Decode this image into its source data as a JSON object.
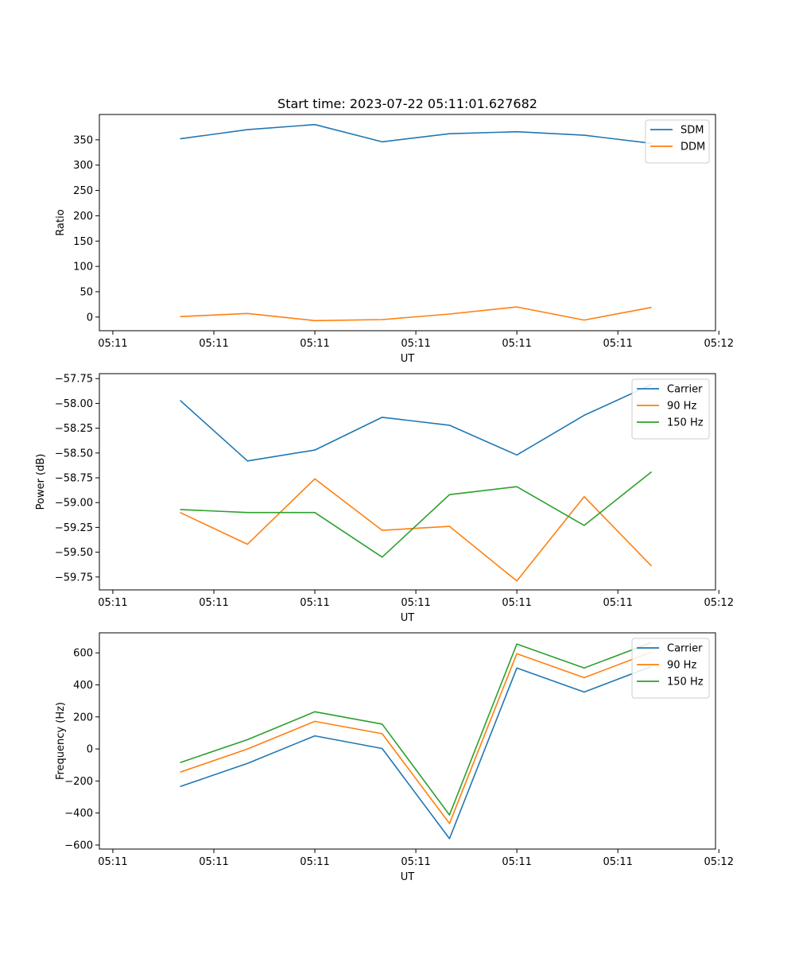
{
  "chart_data": [
    {
      "type": "line",
      "title": "Start time: 2023-07-22 05:11:01.627682",
      "xlabel": "UT",
      "ylabel": "Ratio",
      "xticklabels": [
        "05:11",
        "05:11",
        "05:11",
        "05:11",
        "05:11",
        "05:11",
        "05:12"
      ],
      "x": [
        1,
        2,
        3,
        4,
        5,
        6,
        7,
        8
      ],
      "xlim": [
        -0.2,
        8.95
      ],
      "xticks": [
        0,
        1.5,
        3,
        4.5,
        6,
        7.5,
        9
      ],
      "ylim": [
        -27,
        400
      ],
      "yticks": [
        0,
        50,
        100,
        150,
        200,
        250,
        300,
        350
      ],
      "yticklabels": [
        "0",
        "50",
        "100",
        "150",
        "200",
        "250",
        "300",
        "350"
      ],
      "legend_position": "top-right",
      "series": [
        {
          "name": "SDM",
          "color": "#1f77b4",
          "values": [
            352,
            370,
            380,
            346,
            362,
            366,
            359,
            343
          ]
        },
        {
          "name": "DDM",
          "color": "#ff7f0e",
          "values": [
            1,
            7,
            -7,
            -5,
            6,
            20,
            -6,
            19
          ]
        }
      ]
    },
    {
      "type": "line",
      "title": "",
      "xlabel": "UT",
      "ylabel": "Power (dB)",
      "xticklabels": [
        "05:11",
        "05:11",
        "05:11",
        "05:11",
        "05:11",
        "05:11",
        "05:12"
      ],
      "x": [
        1,
        2,
        3,
        4,
        5,
        6,
        7,
        8
      ],
      "xlim": [
        -0.2,
        8.95
      ],
      "xticks": [
        0,
        1.5,
        3,
        4.5,
        6,
        7.5,
        9
      ],
      "ylim": [
        -59.88,
        -57.7
      ],
      "yticks": [
        -57.75,
        -58.0,
        -58.25,
        -58.5,
        -58.75,
        -59.0,
        -59.25,
        -59.5,
        -59.75
      ],
      "yticklabels": [
        "−57.75",
        "−58.00",
        "−58.25",
        "−58.50",
        "−58.75",
        "−59.00",
        "−59.25",
        "−59.50",
        "−59.75"
      ],
      "legend_position": "top-right",
      "series": [
        {
          "name": "Carrier",
          "color": "#1f77b4",
          "values": [
            -57.97,
            -58.58,
            -58.47,
            -58.14,
            -58.22,
            -58.52,
            -58.12,
            -57.81
          ]
        },
        {
          "name": "90 Hz",
          "color": "#ff7f0e",
          "values": [
            -59.1,
            -59.42,
            -58.76,
            -59.28,
            -59.24,
            -59.79,
            -58.94,
            -59.64
          ]
        },
        {
          "name": "150 Hz",
          "color": "#2ca02c",
          "values": [
            -59.07,
            -59.1,
            -59.1,
            -59.55,
            -58.92,
            -58.84,
            -59.23,
            -58.69
          ]
        }
      ]
    },
    {
      "type": "line",
      "title": "",
      "xlabel": "UT",
      "ylabel": "Frequency (Hz)",
      "xticklabels": [
        "05:11",
        "05:11",
        "05:11",
        "05:11",
        "05:11",
        "05:11",
        "05:12"
      ],
      "x": [
        1,
        2,
        3,
        4,
        5,
        6,
        7,
        8
      ],
      "xlim": [
        -0.2,
        8.95
      ],
      "xticks": [
        0,
        1.5,
        3,
        4.5,
        6,
        7.5,
        9
      ],
      "ylim": [
        -625,
        725
      ],
      "yticks": [
        600,
        400,
        200,
        0,
        -200,
        -400,
        -600
      ],
      "yticklabels": [
        "600",
        "400",
        "200",
        "0",
        "−200",
        "−400",
        "−600"
      ],
      "legend_position": "top-right",
      "series": [
        {
          "name": "Carrier",
          "color": "#1f77b4",
          "values": [
            -235,
            -90,
            82,
            3,
            -560,
            505,
            355,
            515
          ]
        },
        {
          "name": "90 Hz",
          "color": "#ff7f0e",
          "values": [
            -145,
            0,
            172,
            95,
            -465,
            595,
            445,
            605
          ]
        },
        {
          "name": "150 Hz",
          "color": "#2ca02c",
          "values": [
            -85,
            58,
            232,
            155,
            -412,
            655,
            505,
            665
          ]
        }
      ]
    }
  ]
}
